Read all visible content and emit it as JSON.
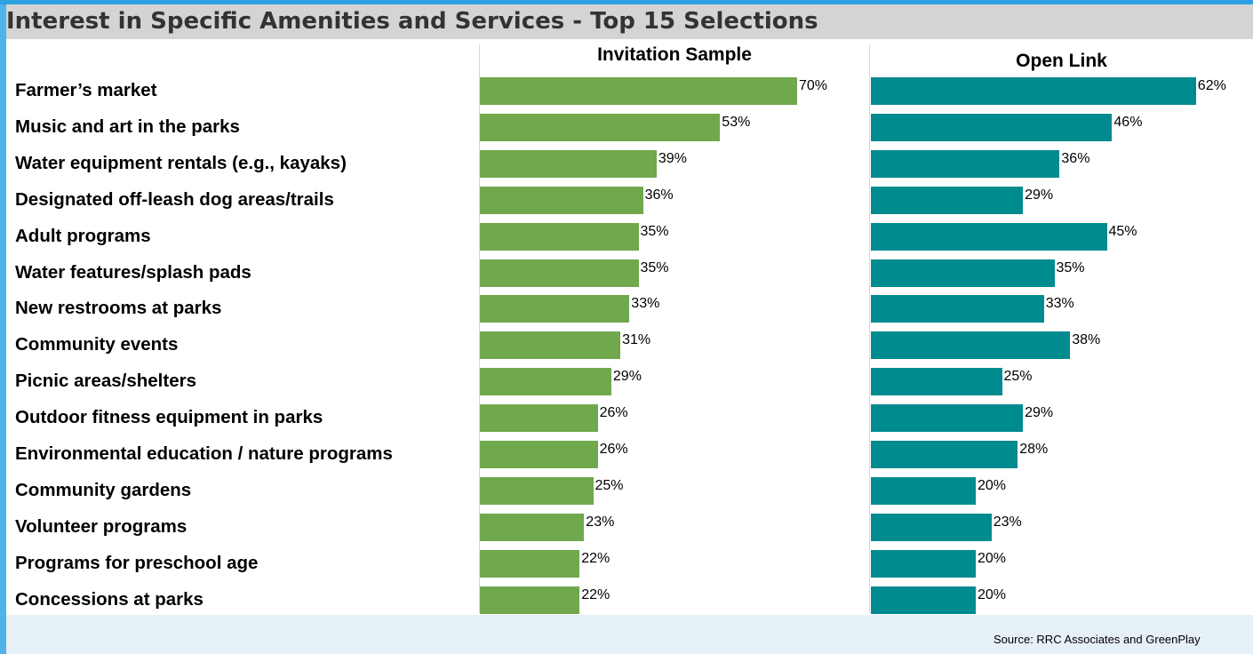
{
  "title": "Interest in Specific Amenities and Services - Top 15 Selections",
  "source": "Source: RRC Associates and GreenPlay",
  "colors": {
    "invitation": "#70a84e",
    "open_link": "#008b8e"
  },
  "chart_data": {
    "type": "bar",
    "orientation": "horizontal",
    "categories": [
      "Farmer’s market",
      "Music and art in the parks",
      "Water equipment rentals (e.g., kayaks)",
      "Designated off-leash dog areas/trails",
      "Adult programs",
      "Water features/splash pads",
      "New restrooms at parks",
      "Community events",
      "Picnic areas/shelters",
      "Outdoor fitness equipment in parks",
      "Environmental education / nature programs",
      "Community gardens",
      "Volunteer programs",
      "Programs for preschool age",
      "Concessions at parks"
    ],
    "series": [
      {
        "name": "Invitation Sample",
        "values": [
          70,
          53,
          39,
          36,
          35,
          35,
          33,
          31,
          29,
          26,
          26,
          25,
          23,
          22,
          22
        ]
      },
      {
        "name": "Open Link",
        "values": [
          62,
          46,
          36,
          29,
          45,
          35,
          33,
          38,
          25,
          29,
          28,
          20,
          23,
          20,
          20
        ]
      }
    ],
    "value_suffix": "%",
    "xlim": [
      0,
      100
    ],
    "grid": false,
    "legend": "none"
  }
}
